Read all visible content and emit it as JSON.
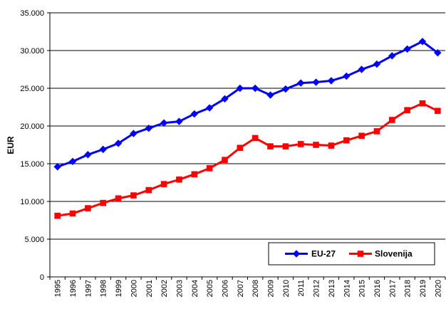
{
  "chart_data": {
    "type": "line",
    "title": "",
    "xlabel": "",
    "ylabel": "EUR",
    "ylim": [
      0,
      35000
    ],
    "yticks": [
      "0",
      "5.000",
      "10.000",
      "15.000",
      "20.000",
      "25.000",
      "30.000",
      "35.000"
    ],
    "ytick_values": [
      0,
      5000,
      10000,
      15000,
      20000,
      25000,
      30000,
      35000
    ],
    "grid": "horizontal",
    "legend_position": "bottom-right",
    "categories": [
      "1995",
      "1996",
      "1997",
      "1998",
      "1999",
      "2000",
      "2001",
      "2002",
      "2003",
      "2004",
      "2005",
      "2006",
      "2007",
      "2008",
      "2009",
      "2010",
      "2011",
      "2012",
      "2013",
      "2014",
      "2015",
      "2016",
      "2017",
      "2018",
      "2019",
      "2020"
    ],
    "series": [
      {
        "name": "EU-27",
        "color": "#0000ff",
        "marker": "diamond",
        "values": [
          14600,
          15300,
          16200,
          16900,
          17700,
          19000,
          19700,
          20400,
          20600,
          21600,
          22400,
          23600,
          25000,
          25000,
          24100,
          24900,
          25700,
          25800,
          26000,
          26600,
          27500,
          28200,
          29300,
          30200,
          31200,
          29700
        ]
      },
      {
        "name": "Slovenija",
        "color": "#ff0000",
        "marker": "square",
        "values": [
          8100,
          8400,
          9100,
          9800,
          10400,
          10800,
          11500,
          12300,
          12900,
          13600,
          14400,
          15500,
          17100,
          18400,
          17300,
          17300,
          17600,
          17500,
          17400,
          18100,
          18700,
          19300,
          20800,
          22100,
          23000,
          22000
        ]
      }
    ]
  }
}
